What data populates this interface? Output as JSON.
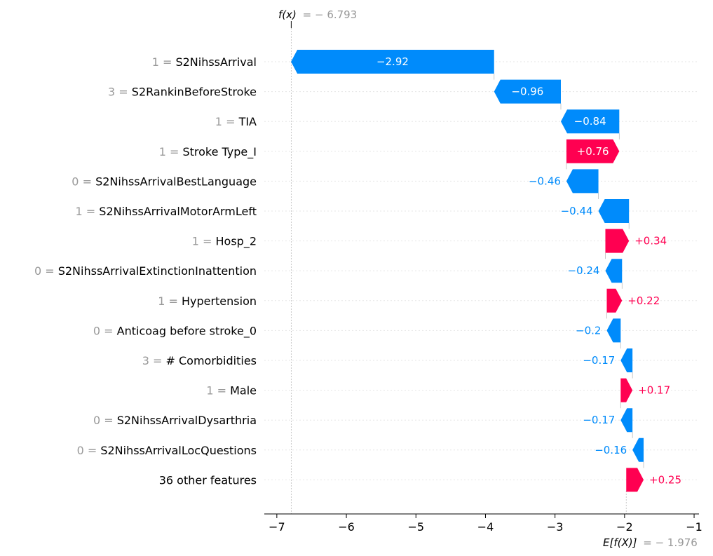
{
  "chart_data": {
    "type": "waterfall",
    "fx_label": "f(x)",
    "fx_value": "= − 6.793",
    "fx": -6.793,
    "base_label": "E[f(X)]",
    "base_value": "= − 1.976",
    "base": -1.976,
    "xlim": [
      -7.18,
      -0.93
    ],
    "xticks": [
      -7,
      -6,
      -5,
      -4,
      -3,
      -2,
      -1
    ],
    "xtick_labels": [
      "−7",
      "−6",
      "−5",
      "−4",
      "−3",
      "−2",
      "−1"
    ],
    "colors": {
      "positive": "#ff0051",
      "negative": "#008bfb",
      "grid": "#cccccc",
      "line": "#bbbbbb"
    },
    "features": [
      {
        "value": "1",
        "name": "S2NihssArrival",
        "shap": -2.92,
        "label": "−2.92"
      },
      {
        "value": "3",
        "name": "S2RankinBeforeStroke",
        "shap": -0.96,
        "label": "−0.96"
      },
      {
        "value": "1",
        "name": "TIA",
        "shap": -0.84,
        "label": "−0.84"
      },
      {
        "value": "1",
        "name": "Stroke Type_I",
        "shap": 0.76,
        "label": "+0.76"
      },
      {
        "value": "0",
        "name": "S2NihssArrivalBestLanguage",
        "shap": -0.46,
        "label": "−0.46"
      },
      {
        "value": "1",
        "name": "S2NihssArrivalMotorArmLeft",
        "shap": -0.44,
        "label": "−0.44"
      },
      {
        "value": "1",
        "name": "Hosp_2",
        "shap": 0.34,
        "label": "+0.34"
      },
      {
        "value": "0",
        "name": "S2NihssArrivalExtinctionInattention",
        "shap": -0.24,
        "label": "−0.24"
      },
      {
        "value": "1",
        "name": "Hypertension",
        "shap": 0.22,
        "label": "+0.22"
      },
      {
        "value": "0",
        "name": "Anticoag before stroke_0",
        "shap": -0.2,
        "label": "−0.2"
      },
      {
        "value": "3",
        "name": "# Comorbidities",
        "shap": -0.17,
        "label": "−0.17"
      },
      {
        "value": "1",
        "name": "Male",
        "shap": 0.17,
        "label": "+0.17"
      },
      {
        "value": "0",
        "name": "S2NihssArrivalDysarthria",
        "shap": -0.17,
        "label": "−0.17"
      },
      {
        "value": "0",
        "name": "S2NihssArrivalLocQuestions",
        "shap": -0.16,
        "label": "−0.16"
      },
      {
        "value": "",
        "name": "36 other features",
        "shap": 0.25,
        "label": "+0.25"
      }
    ]
  }
}
